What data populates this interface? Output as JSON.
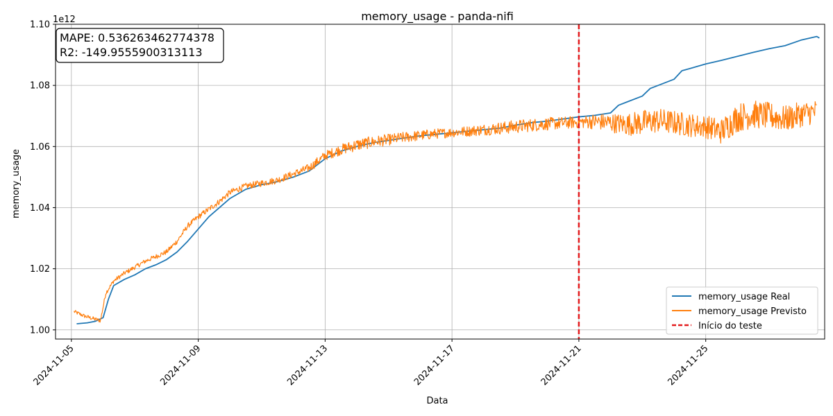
{
  "chart_data": {
    "type": "line",
    "title": "memory_usage - panda-nifi",
    "xlabel": "Data",
    "ylabel": "memory_usage",
    "y_offset_label": "1e12",
    "y_scale_factor": 1000000000000.0,
    "xlim": [
      "2024-11-04T12:00",
      "2024-11-28T18:00"
    ],
    "ylim": [
      0.997,
      1.1
    ],
    "x_ticks": [
      "2024-11-05",
      "2024-11-09",
      "2024-11-13",
      "2024-11-17",
      "2024-11-21",
      "2024-11-25"
    ],
    "y_ticks": [
      1.0,
      1.02,
      1.04,
      1.06,
      1.08,
      1.1
    ],
    "y_tick_labels": [
      "1.00",
      "1.02",
      "1.04",
      "1.06",
      "1.08",
      "1.10"
    ],
    "grid": true,
    "legend_position": "bottom-right",
    "annotation": {
      "mape": "MAPE: 0.536263462774378",
      "r2": "R2: -149.9555900313113"
    },
    "test_start": "2024-11-21T00:00",
    "series": [
      {
        "name": "memory_usage Real",
        "color": "#1f77b4",
        "points": [
          [
            "2024-11-05T04:00",
            1.002
          ],
          [
            "2024-11-05T12:00",
            1.0023
          ],
          [
            "2024-11-05T18:00",
            1.0028
          ],
          [
            "2024-11-06T00:00",
            1.004
          ],
          [
            "2024-11-06T04:00",
            1.01
          ],
          [
            "2024-11-06T08:00",
            1.0145
          ],
          [
            "2024-11-06T16:00",
            1.0165
          ],
          [
            "2024-11-07T00:00",
            1.018
          ],
          [
            "2024-11-07T08:00",
            1.02
          ],
          [
            "2024-11-07T16:00",
            1.0213
          ],
          [
            "2024-11-08T00:00",
            1.023
          ],
          [
            "2024-11-08T08:00",
            1.0255
          ],
          [
            "2024-11-08T16:00",
            1.029
          ],
          [
            "2024-11-09T00:00",
            1.033
          ],
          [
            "2024-11-09T08:00",
            1.037
          ],
          [
            "2024-11-09T16:00",
            1.04
          ],
          [
            "2024-11-10T00:00",
            1.043
          ],
          [
            "2024-11-10T12:00",
            1.046
          ],
          [
            "2024-11-11T00:00",
            1.0475
          ],
          [
            "2024-11-11T12:00",
            1.0485
          ],
          [
            "2024-11-12T00:00",
            1.05
          ],
          [
            "2024-11-12T12:00",
            1.052
          ],
          [
            "2024-11-13T00:00",
            1.056
          ],
          [
            "2024-11-13T12:00",
            1.0585
          ],
          [
            "2024-11-14T00:00",
            1.06
          ],
          [
            "2024-11-14T12:00",
            1.0612
          ],
          [
            "2024-11-15T00:00",
            1.062
          ],
          [
            "2024-11-15T12:00",
            1.0628
          ],
          [
            "2024-11-16T00:00",
            1.0635
          ],
          [
            "2024-11-16T12:00",
            1.064
          ],
          [
            "2024-11-17T00:00",
            1.0645
          ],
          [
            "2024-11-17T12:00",
            1.065
          ],
          [
            "2024-11-18T00:00",
            1.0655
          ],
          [
            "2024-11-18T12:00",
            1.066
          ],
          [
            "2024-11-19T00:00",
            1.067
          ],
          [
            "2024-11-19T12:00",
            1.0678
          ],
          [
            "2024-11-20T00:00",
            1.0683
          ],
          [
            "2024-11-20T12:00",
            1.069
          ],
          [
            "2024-11-21T00:00",
            1.0697
          ],
          [
            "2024-11-21T12:00",
            1.0702
          ],
          [
            "2024-11-22T00:00",
            1.071
          ],
          [
            "2024-11-22T06:00",
            1.0735
          ],
          [
            "2024-11-22T12:00",
            1.0745
          ],
          [
            "2024-11-23T00:00",
            1.0765
          ],
          [
            "2024-11-23T06:00",
            1.079
          ],
          [
            "2024-11-23T12:00",
            1.08
          ],
          [
            "2024-11-24T00:00",
            1.082
          ],
          [
            "2024-11-24T06:00",
            1.0848
          ],
          [
            "2024-11-24T12:00",
            1.0855
          ],
          [
            "2024-11-25T00:00",
            1.087
          ],
          [
            "2024-11-25T12:00",
            1.0882
          ],
          [
            "2024-11-26T00:00",
            1.0895
          ],
          [
            "2024-11-26T12:00",
            1.0908
          ],
          [
            "2024-11-27T00:00",
            1.092
          ],
          [
            "2024-11-27T12:00",
            1.093
          ],
          [
            "2024-11-28T00:00",
            1.0948
          ],
          [
            "2024-11-28T12:00",
            1.096
          ],
          [
            "2024-11-28T14:00",
            1.0955
          ]
        ]
      },
      {
        "name": "memory_usage Previsto",
        "color": "#ff7f0e",
        "points": [
          [
            "2024-11-05T02:00",
            1.006
          ],
          [
            "2024-11-05T10:00",
            1.0045
          ],
          [
            "2024-11-05T18:00",
            1.0035
          ],
          [
            "2024-11-05T22:00",
            1.003
          ],
          [
            "2024-11-06T02:00",
            1.012
          ],
          [
            "2024-11-06T08:00",
            1.016
          ],
          [
            "2024-11-06T16:00",
            1.0185
          ],
          [
            "2024-11-07T00:00",
            1.0205
          ],
          [
            "2024-11-07T08:00",
            1.0225
          ],
          [
            "2024-11-07T16:00",
            1.024
          ],
          [
            "2024-11-08T00:00",
            1.0255
          ],
          [
            "2024-11-08T08:00",
            1.029
          ],
          [
            "2024-11-08T16:00",
            1.034
          ],
          [
            "2024-11-09T00:00",
            1.037
          ],
          [
            "2024-11-09T08:00",
            1.0395
          ],
          [
            "2024-11-09T16:00",
            1.042
          ],
          [
            "2024-11-10T00:00",
            1.045
          ],
          [
            "2024-11-10T12:00",
            1.047
          ],
          [
            "2024-11-11T00:00",
            1.048
          ],
          [
            "2024-11-11T12:00",
            1.049
          ],
          [
            "2024-11-12T00:00",
            1.051
          ],
          [
            "2024-11-12T12:00",
            1.053
          ],
          [
            "2024-11-13T00:00",
            1.057
          ],
          [
            "2024-11-13T12:00",
            1.059
          ],
          [
            "2024-11-14T00:00",
            1.0605
          ],
          [
            "2024-11-14T12:00",
            1.0615
          ],
          [
            "2024-11-15T00:00",
            1.0622
          ],
          [
            "2024-11-15T12:00",
            1.063
          ],
          [
            "2024-11-16T00:00",
            1.0636
          ],
          [
            "2024-11-16T12:00",
            1.0642
          ],
          [
            "2024-11-17T00:00",
            1.0646
          ],
          [
            "2024-11-17T12:00",
            1.065
          ],
          [
            "2024-11-18T00:00",
            1.0655
          ],
          [
            "2024-11-18T12:00",
            1.066
          ],
          [
            "2024-11-19T00:00",
            1.0665
          ],
          [
            "2024-11-19T12:00",
            1.067
          ],
          [
            "2024-11-20T00:00",
            1.0674
          ],
          [
            "2024-11-20T12:00",
            1.0677
          ],
          [
            "2024-11-21T00:00",
            1.068
          ],
          [
            "2024-11-21T12:00",
            1.0682
          ],
          [
            "2024-11-22T00:00",
            1.0678
          ],
          [
            "2024-11-22T12:00",
            1.0672
          ],
          [
            "2024-11-23T00:00",
            1.0678
          ],
          [
            "2024-11-23T12:00",
            1.0685
          ],
          [
            "2024-11-24T00:00",
            1.0678
          ],
          [
            "2024-11-24T12:00",
            1.067
          ],
          [
            "2024-11-25T00:00",
            1.0665
          ],
          [
            "2024-11-25T12:00",
            1.065
          ],
          [
            "2024-11-26T00:00",
            1.0695
          ],
          [
            "2024-11-26T12:00",
            1.0705
          ],
          [
            "2024-11-27T00:00",
            1.07
          ],
          [
            "2024-11-27T12:00",
            1.069
          ],
          [
            "2024-11-28T00:00",
            1.0705
          ],
          [
            "2024-11-28T12:00",
            1.0715
          ]
        ],
        "noise_amplitude": [
          [
            "2024-11-05T00:00",
            0.0006
          ],
          [
            "2024-11-08T00:00",
            0.0008
          ],
          [
            "2024-11-12T00:00",
            0.0012
          ],
          [
            "2024-11-14T00:00",
            0.002
          ],
          [
            "2024-11-17T00:00",
            0.0016
          ],
          [
            "2024-11-19T00:00",
            0.0022
          ],
          [
            "2024-11-21T00:00",
            0.002
          ],
          [
            "2024-11-23T00:00",
            0.0042
          ],
          [
            "2024-11-25T00:00",
            0.0038
          ],
          [
            "2024-11-26T00:00",
            0.0048
          ],
          [
            "2024-11-28T12:00",
            0.004
          ]
        ]
      },
      {
        "name": "Início do teste",
        "color": "#e31a1c",
        "style": "dashed"
      }
    ]
  }
}
